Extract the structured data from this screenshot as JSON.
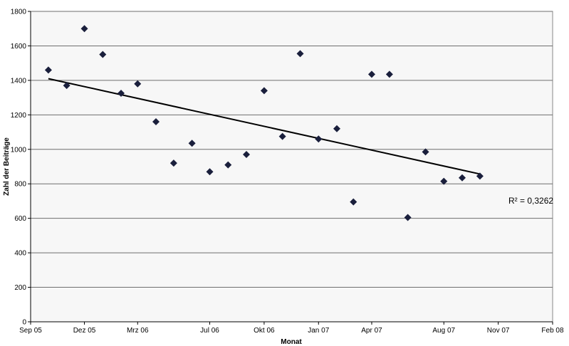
{
  "chart_data": {
    "type": "scatter",
    "xlabel": "Monat",
    "ylabel": "Zahl der Beiträge",
    "ylim": [
      0,
      1800
    ],
    "yticks": [
      0,
      200,
      400,
      600,
      800,
      1000,
      1200,
      1400,
      1600,
      1800
    ],
    "xlim": [
      "2005-09-01",
      "2008-02-01"
    ],
    "xticks": [
      {
        "date": "2005-09-01",
        "label": "Sep 05"
      },
      {
        "date": "2005-12-01",
        "label": "Dez 05"
      },
      {
        "date": "2006-03-01",
        "label": "Mrz 06"
      },
      {
        "date": "2006-07-01",
        "label": "Jul 06"
      },
      {
        "date": "2006-10-01",
        "label": "Okt 06"
      },
      {
        "date": "2007-01-01",
        "label": "Jan 07"
      },
      {
        "date": "2007-04-01",
        "label": "Apr 07"
      },
      {
        "date": "2007-08-01",
        "label": "Aug 07"
      },
      {
        "date": "2007-11-01",
        "label": "Nov 07"
      },
      {
        "date": "2008-02-01",
        "label": "Feb 08"
      }
    ],
    "grid": "horizontal",
    "marker_color": "#1a1f3c",
    "series": [
      {
        "marker": "diamond",
        "points": [
          {
            "x": "2005-10-01",
            "y": 1460
          },
          {
            "x": "2005-11-01",
            "y": 1370
          },
          {
            "x": "2005-12-01",
            "y": 1700
          },
          {
            "x": "2006-01-01",
            "y": 1550
          },
          {
            "x": "2006-02-01",
            "y": 1325
          },
          {
            "x": "2006-03-01",
            "y": 1380
          },
          {
            "x": "2006-04-01",
            "y": 1160
          },
          {
            "x": "2006-05-01",
            "y": 920
          },
          {
            "x": "2006-06-01",
            "y": 1035
          },
          {
            "x": "2006-07-01",
            "y": 870
          },
          {
            "x": "2006-08-01",
            "y": 910
          },
          {
            "x": "2006-09-01",
            "y": 970
          },
          {
            "x": "2006-10-01",
            "y": 1340
          },
          {
            "x": "2006-11-01",
            "y": 1075
          },
          {
            "x": "2006-12-01",
            "y": 1555
          },
          {
            "x": "2007-01-01",
            "y": 1060
          },
          {
            "x": "2007-02-01",
            "y": 1120
          },
          {
            "x": "2007-03-01",
            "y": 695
          },
          {
            "x": "2007-04-01",
            "y": 1435
          },
          {
            "x": "2007-05-01",
            "y": 1435
          },
          {
            "x": "2007-06-01",
            "y": 605
          },
          {
            "x": "2007-07-01",
            "y": 985
          },
          {
            "x": "2007-08-01",
            "y": 815
          },
          {
            "x": "2007-09-01",
            "y": 835
          },
          {
            "x": "2007-10-01",
            "y": 845
          }
        ]
      }
    ],
    "trendline": {
      "type": "linear",
      "start": {
        "x": "2005-10-01",
        "y": 1410
      },
      "end": {
        "x": "2007-10-01",
        "y": 857
      },
      "r2_label": "R² = 0,3262"
    }
  }
}
